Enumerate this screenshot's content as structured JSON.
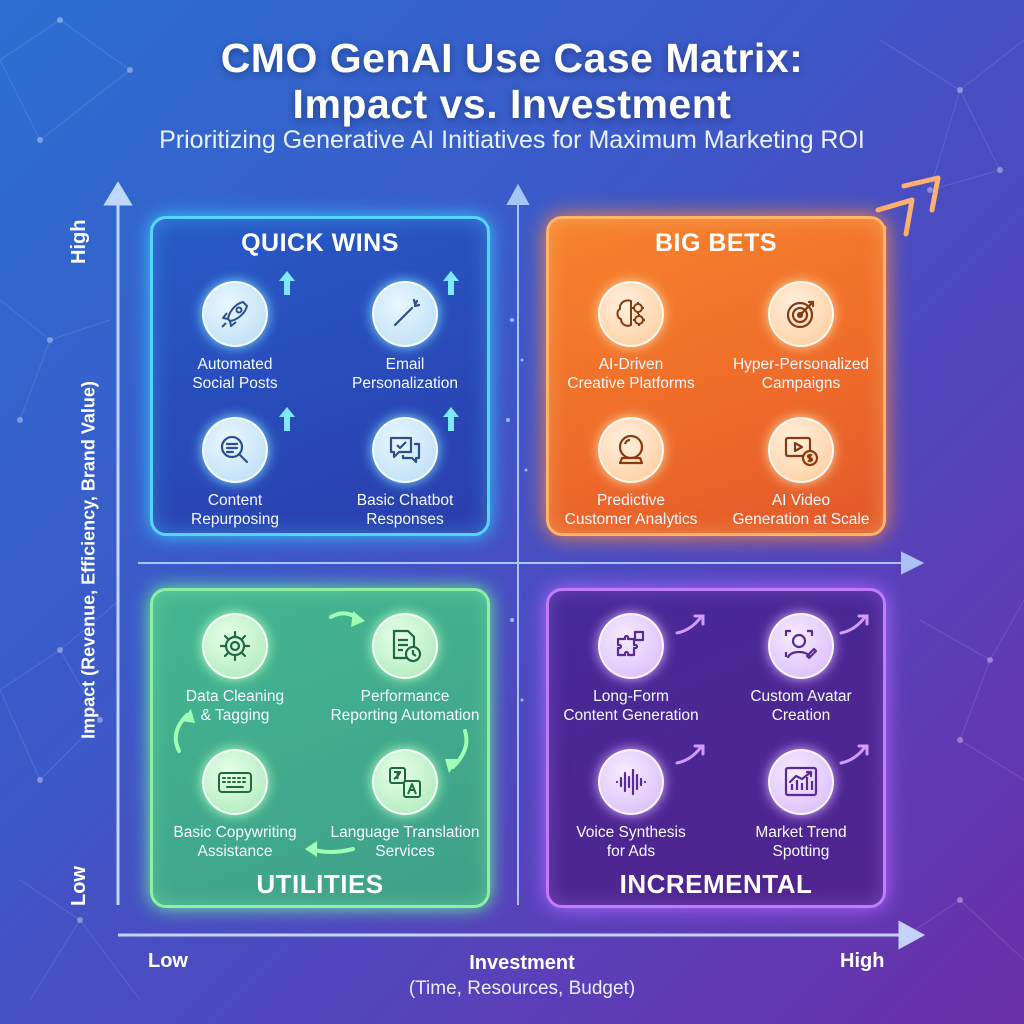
{
  "header": {
    "title_line1": "CMO GenAI Use Case Matrix:",
    "title_line2": "Impact vs. Investment",
    "subtitle": "Prioritizing Generative AI Initiatives for Maximum Marketing ROI"
  },
  "axes": {
    "y_high": "High",
    "y_low": "Low",
    "y_title": "Impact (Revenue, Efficiency, Brand Value)",
    "x_low": "Low",
    "x_high": "High",
    "x_title": "Investment",
    "x_subtitle": "(Time, Resources, Budget)"
  },
  "quadrants": {
    "quick_wins": {
      "title": "QUICK WINS",
      "items": [
        {
          "label": "Automated\nSocial Posts",
          "icon": "rocket-icon"
        },
        {
          "label": "Email\nPersonalization",
          "icon": "magic-wand-icon"
        },
        {
          "label": "Content\nRepurposing",
          "icon": "magnifier-document-icon"
        },
        {
          "label": "Basic Chatbot\nResponses",
          "icon": "chat-bubbles-icon"
        }
      ]
    },
    "big_bets": {
      "title": "BIG BETS",
      "items": [
        {
          "label": "AI-Driven\nCreative Platforms",
          "icon": "brain-gears-icon"
        },
        {
          "label": "Hyper-Personalized\nCampaigns",
          "icon": "target-icon"
        },
        {
          "label": "Predictive\nCustomer Analytics",
          "icon": "crystal-ball-icon"
        },
        {
          "label": "AI Video\nGeneration at Scale",
          "icon": "video-dollar-icon"
        }
      ]
    },
    "utilities": {
      "title": "UTILITIES",
      "items": [
        {
          "label": "Data Cleaning\n& Tagging",
          "icon": "gear-icon"
        },
        {
          "label": "Performance\nReporting Automation",
          "icon": "report-clock-icon"
        },
        {
          "label": "Basic Copywriting\nAssistance",
          "icon": "keyboard-icon"
        },
        {
          "label": "Language Translation\nServices",
          "icon": "translate-icon"
        }
      ]
    },
    "incremental": {
      "title": "INCREMENTAL",
      "items": [
        {
          "label": "Long-Form\nContent Generation",
          "icon": "puzzle-icon"
        },
        {
          "label": "Custom Avatar\nCreation",
          "icon": "avatar-icon"
        },
        {
          "label": "Voice Synthesis\nfor Ads",
          "icon": "sound-wave-icon"
        },
        {
          "label": "Market Trend\nSpotting",
          "icon": "trend-chart-icon"
        }
      ]
    }
  },
  "colors": {
    "quick_wins": "#56d6ff",
    "big_bets": "#ff8a3a",
    "utilities": "#8df0a2",
    "incremental": "#c07cff"
  }
}
